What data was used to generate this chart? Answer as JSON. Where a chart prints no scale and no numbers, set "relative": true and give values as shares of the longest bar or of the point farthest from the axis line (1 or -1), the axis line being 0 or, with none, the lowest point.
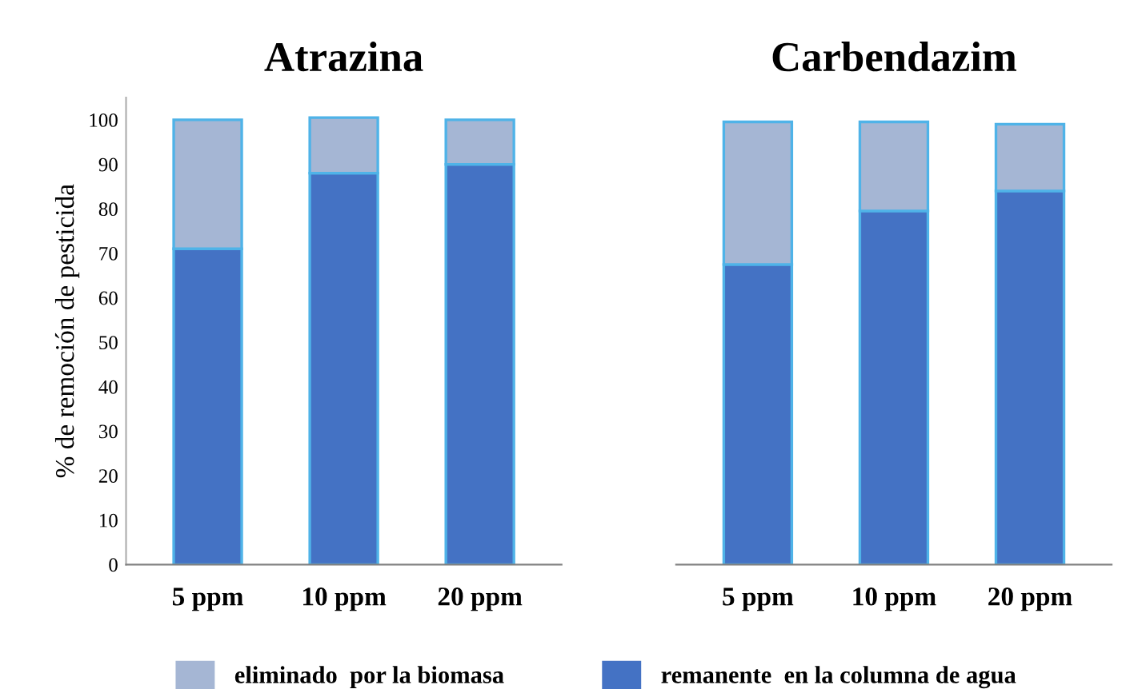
{
  "chart_data": [
    {
      "type": "bar",
      "title": "Atrazina",
      "ylabel": "% de remoción de pesticida",
      "categories": [
        "5 ppm",
        "10 ppm",
        "20 ppm"
      ],
      "stacked": true,
      "ylim": [
        0,
        105
      ],
      "yticks": [
        0,
        10,
        20,
        30,
        40,
        50,
        60,
        70,
        80,
        90,
        100
      ],
      "grid": false,
      "legend": "bottom",
      "series": [
        {
          "name": "remanente  en la columna de agua",
          "color": "#4472c4",
          "values": [
            71,
            88,
            90
          ]
        },
        {
          "name": "eliminado  por la biomasa",
          "color": "#a5b6d4",
          "values": [
            29,
            12.5,
            10
          ]
        }
      ]
    },
    {
      "type": "bar",
      "title": "Carbendazim",
      "categories": [
        "5 ppm",
        "10 ppm",
        "20 ppm"
      ],
      "stacked": true,
      "relative": true,
      "grid": false,
      "series": [
        {
          "color": "#4472c4",
          "values": [
            0.678,
            0.799,
            0.844
          ]
        },
        {
          "color": "#a5b6d4",
          "values": [
            0.322,
            0.201,
            0.151
          ]
        }
      ]
    }
  ]
}
